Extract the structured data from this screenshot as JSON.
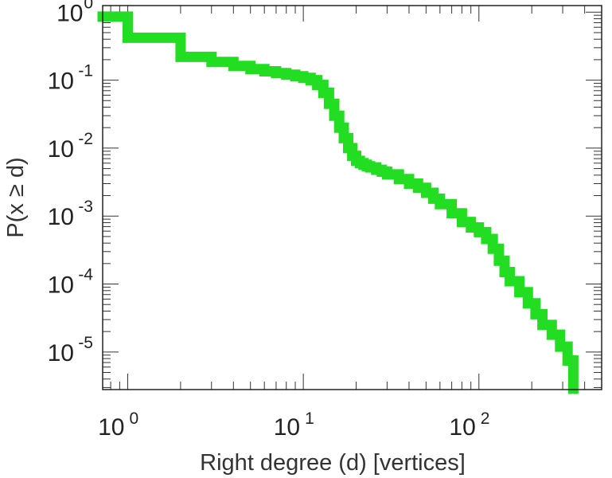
{
  "chart_data": {
    "type": "line",
    "title": "",
    "xlabel": "Right degree (d) [vertices]",
    "ylabel": "P(x ≥ d)",
    "xscale": "log",
    "yscale": "log",
    "xlim": [
      0.72,
      500
    ],
    "ylim": [
      2.8e-06,
      1.25
    ],
    "grid": false,
    "legend": "none",
    "x_ticks": [
      {
        "base": "10",
        "exp": "0",
        "value": 1
      },
      {
        "base": "10",
        "exp": "1",
        "value": 10
      },
      {
        "base": "10",
        "exp": "2",
        "value": 100
      }
    ],
    "y_ticks": [
      {
        "base": "10",
        "exp": "0",
        "value": 1
      },
      {
        "base": "10",
        "exp": "-1",
        "value": 0.1
      },
      {
        "base": "10",
        "exp": "-2",
        "value": 0.01
      },
      {
        "base": "10",
        "exp": "-3",
        "value": 0.001
      },
      {
        "base": "10",
        "exp": "-4",
        "value": 0.0001
      },
      {
        "base": "10",
        "exp": "-5",
        "value": 1e-05
      }
    ],
    "series": [
      {
        "color": "#22dd22",
        "step": true,
        "x": [
          0.72,
          1,
          2,
          3,
          4,
          5,
          6,
          7,
          8,
          9,
          10,
          11,
          12,
          13,
          14,
          15,
          16,
          17,
          18,
          19,
          20,
          21,
          22,
          23,
          24,
          26,
          28,
          30,
          35,
          40,
          45,
          50,
          55,
          60,
          70,
          80,
          90,
          100,
          110,
          120,
          130,
          140,
          150,
          170,
          190,
          210,
          230,
          260,
          290,
          320,
          345
        ],
        "y": [
          0.86,
          0.42,
          0.22,
          0.185,
          0.162,
          0.145,
          0.135,
          0.127,
          0.12,
          0.114,
          0.108,
          0.1,
          0.085,
          0.065,
          0.045,
          0.03,
          0.02,
          0.014,
          0.01,
          0.0077,
          0.0065,
          0.006,
          0.0057,
          0.0054,
          0.0052,
          0.0048,
          0.0045,
          0.0041,
          0.0035,
          0.003,
          0.0026,
          0.0022,
          0.0018,
          0.0015,
          0.0011,
          0.00082,
          0.00068,
          0.00058,
          0.00046,
          0.00033,
          0.00022,
          0.00015,
          0.00011,
          7.6e-05,
          5.2e-05,
          3.6e-05,
          2.5e-05,
          1.8e-05,
          1.2e-05,
          7.5e-06,
          4.5e-06
        ]
      }
    ]
  }
}
